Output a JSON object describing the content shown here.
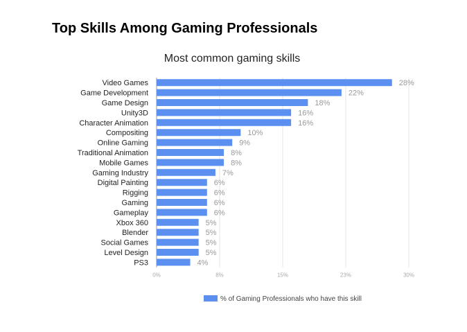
{
  "page": {
    "heading": "Top Skills Among Gaming Professionals"
  },
  "chart_data": {
    "type": "bar",
    "orientation": "horizontal",
    "title": "Most common gaming skills",
    "categories": [
      "Video Games",
      "Game Development",
      "Game Design",
      "Unity3D",
      "Character Animation",
      "Compositing",
      "Online Gaming",
      "Traditional Animation",
      "Mobile Games",
      "Gaming Industry",
      "Digital Painting",
      "Rigging",
      "Gaming",
      "Gameplay",
      "Xbox 360",
      "Blender",
      "Social Games",
      "Level Design",
      "PS3"
    ],
    "series": [
      {
        "name": "% of Gaming Professionals who have this skill",
        "values": [
          28,
          22,
          18,
          16,
          16,
          10,
          9,
          8,
          8,
          7,
          6,
          6,
          6,
          6,
          5,
          5,
          5,
          5,
          4
        ],
        "data_labels": [
          "28%",
          "22%",
          "18%",
          "16%",
          "16%",
          "10%",
          "9%",
          "8%",
          "8%",
          "7%",
          "6%",
          "6%",
          "6%",
          "6%",
          "5%",
          "5%",
          "5%",
          "5%",
          "4%"
        ],
        "color": "#5b8ff0"
      }
    ],
    "xlim": [
      0,
      30
    ],
    "x_ticks": [
      0,
      7.5,
      15,
      22.5,
      30
    ],
    "x_tick_labels": [
      "0%",
      "8%",
      "15%",
      "23%",
      "30%"
    ],
    "grid": true,
    "legend_position": "bottom",
    "xlabel": "",
    "ylabel": ""
  }
}
